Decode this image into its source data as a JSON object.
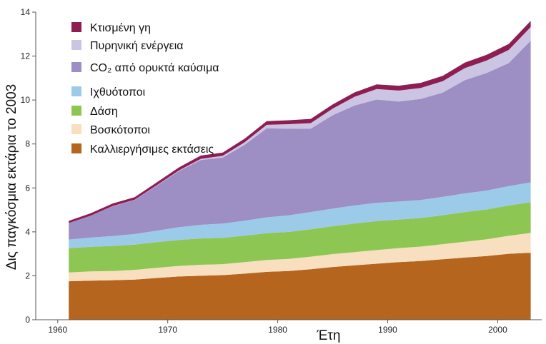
{
  "chart_data": {
    "type": "area",
    "stacked": true,
    "xlabel": "Έτη",
    "ylabel": "Δις παγκόσμια εκτάρια το 2003",
    "xlim": [
      1958,
      2004
    ],
    "ylim": [
      0,
      14
    ],
    "xticks": [
      1960,
      1970,
      1980,
      1990,
      2000
    ],
    "yticks": [
      0,
      2,
      4,
      6,
      8,
      10,
      12,
      14
    ],
    "x": [
      1961,
      1963,
      1965,
      1967,
      1969,
      1971,
      1973,
      1975,
      1977,
      1979,
      1981,
      1983,
      1985,
      1987,
      1989,
      1991,
      1993,
      1995,
      1997,
      1999,
      2001,
      2003
    ],
    "series": [
      {
        "name": "Καλλιεργήσιμες εκτάσεις",
        "color": "#b5651d",
        "values": [
          1.75,
          1.78,
          1.8,
          1.83,
          1.9,
          1.97,
          2.0,
          2.03,
          2.1,
          2.18,
          2.22,
          2.3,
          2.4,
          2.48,
          2.55,
          2.62,
          2.67,
          2.75,
          2.83,
          2.9,
          3.0,
          3.05
        ]
      },
      {
        "name": "Βοσκότοποι",
        "color": "#f7dfc0",
        "values": [
          0.4,
          0.42,
          0.42,
          0.44,
          0.46,
          0.48,
          0.5,
          0.5,
          0.52,
          0.54,
          0.55,
          0.57,
          0.59,
          0.6,
          0.62,
          0.64,
          0.66,
          0.69,
          0.72,
          0.76,
          0.82,
          0.9
        ]
      },
      {
        "name": "Δάση",
        "color": "#8dc653",
        "values": [
          1.1,
          1.12,
          1.14,
          1.15,
          1.17,
          1.18,
          1.2,
          1.2,
          1.21,
          1.22,
          1.23,
          1.25,
          1.27,
          1.3,
          1.32,
          1.3,
          1.3,
          1.32,
          1.35,
          1.36,
          1.38,
          1.4
        ]
      },
      {
        "name": "Ιχθυότοποι",
        "color": "#9ccbea",
        "values": [
          0.4,
          0.42,
          0.45,
          0.48,
          0.52,
          0.58,
          0.62,
          0.65,
          0.68,
          0.72,
          0.75,
          0.78,
          0.8,
          0.82,
          0.83,
          0.82,
          0.82,
          0.83,
          0.85,
          0.86,
          0.88,
          0.9
        ]
      },
      {
        "name": "CO₂ από ορυκτά καύσιμα",
        "color": "#9d8ec4",
        "values": [
          0.75,
          1.0,
          1.35,
          1.55,
          2.05,
          2.55,
          2.95,
          3.0,
          3.45,
          4.05,
          3.95,
          3.8,
          4.25,
          4.55,
          4.7,
          4.55,
          4.6,
          4.75,
          5.15,
          5.35,
          5.6,
          6.45
        ]
      },
      {
        "name": "Πυρηνική ενέργεια",
        "color": "#cbc4e3",
        "values": [
          0.0,
          0.0,
          0.01,
          0.01,
          0.02,
          0.03,
          0.05,
          0.08,
          0.12,
          0.16,
          0.2,
          0.25,
          0.3,
          0.4,
          0.48,
          0.5,
          0.5,
          0.52,
          0.55,
          0.57,
          0.6,
          0.62
        ]
      },
      {
        "name": "Κτισμένη γη",
        "color": "#8e1d52",
        "values": [
          0.1,
          0.11,
          0.12,
          0.12,
          0.13,
          0.14,
          0.15,
          0.15,
          0.16,
          0.17,
          0.18,
          0.19,
          0.19,
          0.2,
          0.21,
          0.22,
          0.23,
          0.24,
          0.25,
          0.26,
          0.27,
          0.28
        ]
      }
    ],
    "legend": {
      "placement": "top-left inside",
      "entries": [
        {
          "label": "Κτισμένη γη",
          "color": "#8e1d52"
        },
        {
          "label": "Πυρηνική ενέργεια",
          "color": "#cbc4e3"
        },
        {
          "label": "CO₂ από ορυκτά καύσιμα",
          "color": "#9d8ec4"
        },
        {
          "label": "Ιχθυότοποι",
          "color": "#9ccbea"
        },
        {
          "label": "Δάση",
          "color": "#8dc653"
        },
        {
          "label": "Βοσκότοποι",
          "color": "#f7dfc0"
        },
        {
          "label": "Καλλιεργήσιμες εκτάσεις",
          "color": "#b5651d"
        }
      ]
    },
    "grid": false
  }
}
